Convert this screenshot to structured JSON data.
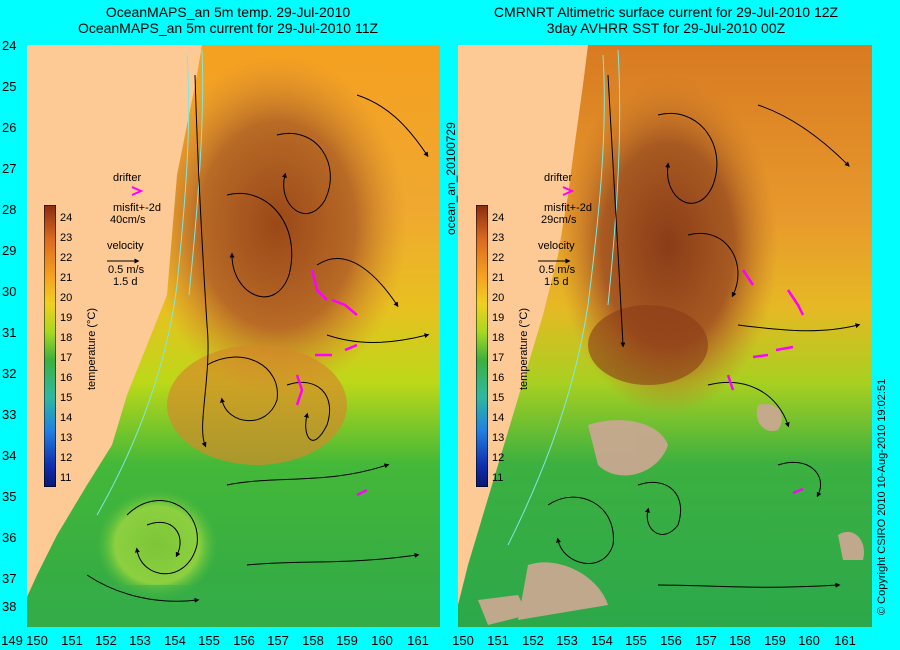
{
  "left_panel": {
    "title_line1": "OceanMAPS_an 5m temp. 29-Jul-2010",
    "title_line2": "OceanMAPS_an 5m current for 29-Jul-2010 11Z",
    "drifter_label": "drifter",
    "misfit_label": "misfit+-2d",
    "misfit_speed": "40cm/s",
    "velocity_label": "velocity",
    "velocity_scale": "0.5 m/s",
    "velocity_days": "1.5 d"
  },
  "right_panel": {
    "title_line1": "CMRNRT Altimetric surface current for 29-Jul-2010 12Z",
    "title_line2": "3day AVHRR SST for 29-Jul-2010 00Z",
    "drifter_label": "drifter",
    "misfit_label": "misfit+-2d",
    "misfit_speed": "29cm/s",
    "velocity_label": "velocity",
    "velocity_scale": "0.5 m/s",
    "velocity_days": "1.5 d"
  },
  "side_label": "ocean_an_20100729",
  "copyright": "© Copyright CSIRO 2010   10-Aug-2010 19:02:51",
  "colorbar": {
    "label": "temperature (°C)",
    "ticks": [
      "24",
      "23",
      "22",
      "21",
      "20",
      "19",
      "18",
      "17",
      "16",
      "15",
      "14",
      "13",
      "12",
      "11"
    ]
  },
  "y_axis_labels": [
    "24",
    "25",
    "26",
    "27",
    "28",
    "29",
    "30",
    "31",
    "32",
    "33",
    "34",
    "35",
    "36",
    "37",
    "38"
  ],
  "x_axis_labels": [
    "149",
    "150",
    "151",
    "152",
    "153",
    "154",
    "155",
    "156",
    "157",
    "158",
    "159",
    "160",
    "161"
  ],
  "colors": {
    "background": "#00ffff",
    "land": "#fdca95",
    "drifter": "#ff00ff",
    "warm": "#b05a20",
    "cool": "#22a838"
  }
}
